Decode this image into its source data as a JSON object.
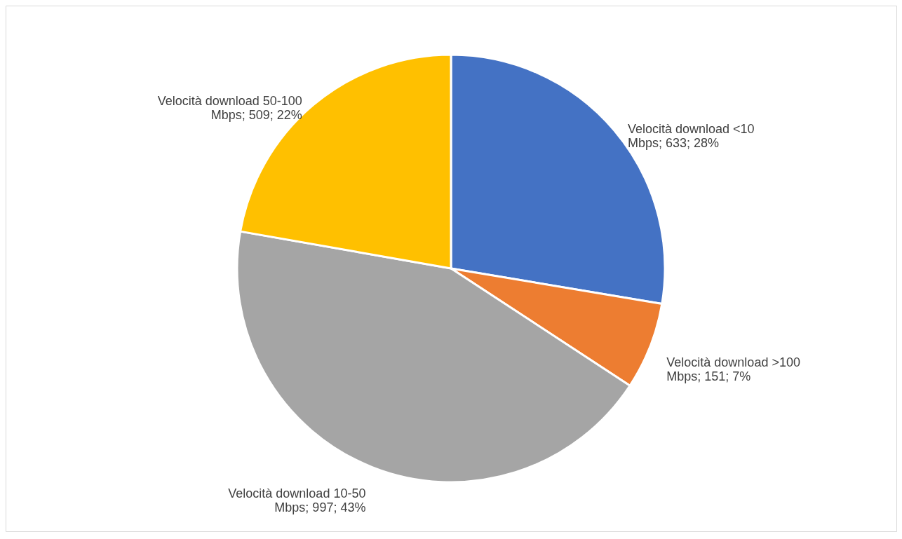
{
  "chart_data": {
    "type": "pie",
    "categories": [
      "Velocità download <10 Mbps",
      "Velocità download >100 Mbps",
      "Velocità download 10-50 Mbps",
      "Velocità download 50-100 Mbps"
    ],
    "values": [
      633,
      151,
      997,
      509
    ],
    "colors": [
      "#4472c4",
      "#ed7d31",
      "#a5a5a5",
      "#ffc000"
    ],
    "value_labels": [
      "633; 28%",
      "151; 7%",
      "997; 43%",
      "509; 22%"
    ]
  }
}
